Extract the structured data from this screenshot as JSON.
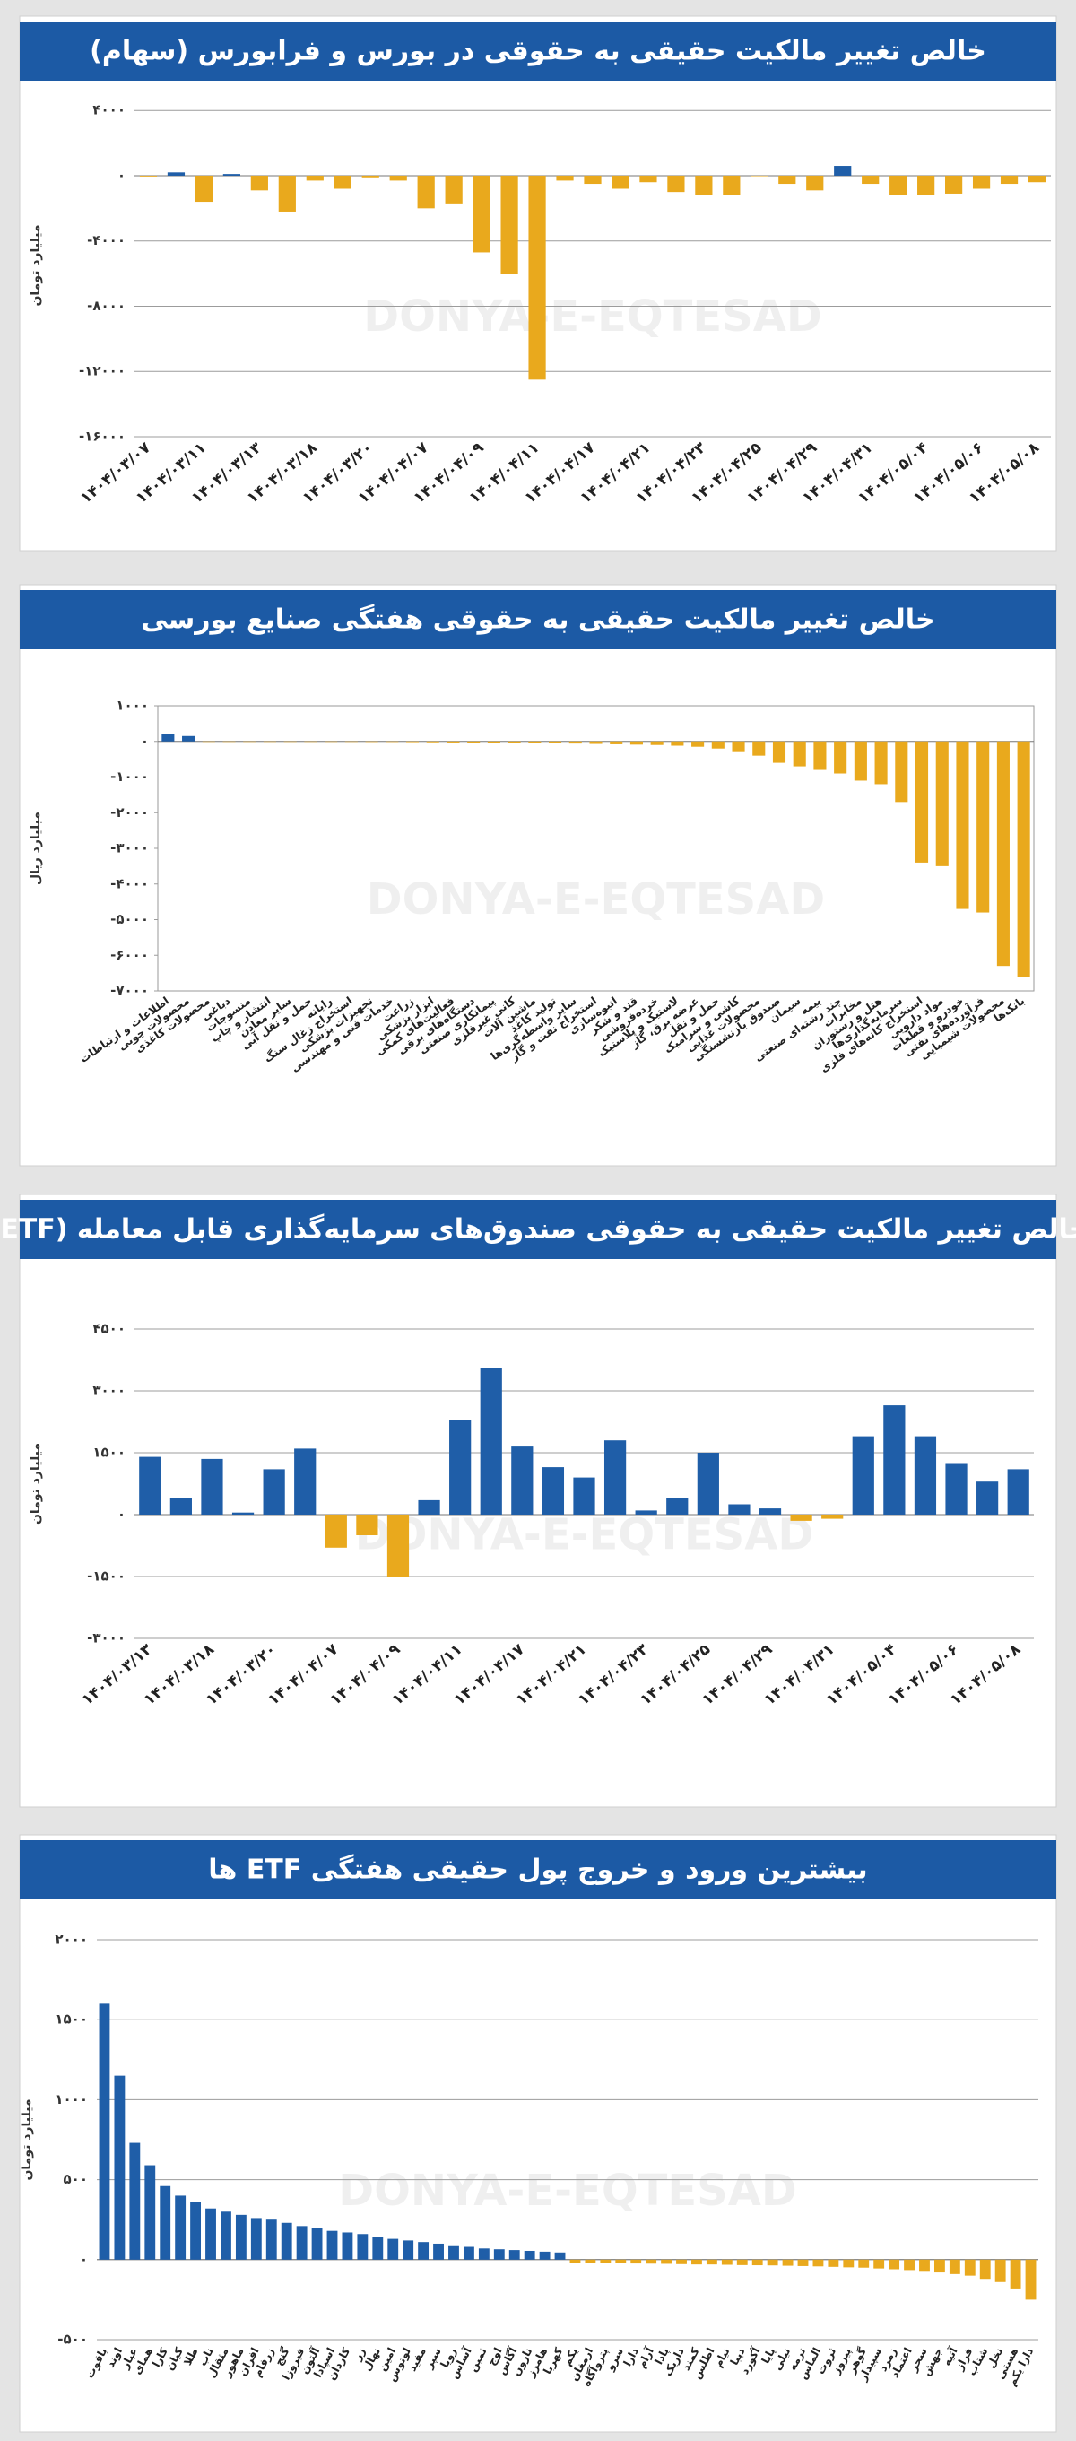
{
  "chart_data": [
    {
      "type": "bar",
      "title": "خالص تغییر مالکیت حقیقی به حقوقی در بورس و فرابورس (سهام)",
      "y_label": "میلیارد تومان",
      "watermark": "DONYA-E-EQTESAD",
      "categories": [
        "۱۴۰۴/۰۳/۰۷",
        null,
        "۱۴۰۴/۰۳/۱۱",
        null,
        "۱۴۰۴/۰۳/۱۳",
        null,
        "۱۴۰۴/۰۳/۱۸",
        null,
        "۱۴۰۴/۰۳/۲۰",
        null,
        "۱۴۰۴/۰۴/۰۷",
        null,
        "۱۴۰۴/۰۴/۰۹",
        null,
        "۱۴۰۴/۰۴/۱۱",
        null,
        "۱۴۰۴/۰۴/۱۷",
        null,
        "۱۴۰۴/۰۴/۲۱",
        null,
        "۱۴۰۴/۰۴/۲۳",
        null,
        "۱۴۰۴/۰۴/۲۵",
        null,
        "۱۴۰۴/۰۴/۲۹",
        null,
        "۱۴۰۴/۰۴/۳۱",
        null,
        "۱۴۰۴/۰۵/۰۴",
        null,
        "۱۴۰۴/۰۵/۰۶",
        null,
        "۱۴۰۴/۰۵/۰۸"
      ],
      "values": [
        -50,
        200,
        -1600,
        100,
        -900,
        -2200,
        -300,
        -800,
        -100,
        -300,
        -2000,
        -1700,
        -4700,
        -6000,
        -12500,
        -300,
        -500,
        -800,
        -400,
        -1000,
        -1200,
        -1200,
        -30,
        -500,
        -900,
        600,
        -500,
        -1200,
        -1200,
        -1100,
        -800,
        -500,
        -400
      ],
      "positive_color": "#1f5ea8",
      "negative_color": "#e9a91d",
      "ylim": [
        -16000,
        5000
      ],
      "yticks": [
        {
          "value": 4000,
          "label": "۴۰۰۰"
        },
        {
          "value": 0,
          "label": "۰"
        },
        {
          "value": -4000,
          "label": "-۴۰۰۰"
        },
        {
          "value": -8000,
          "label": "-۸۰۰۰"
        },
        {
          "value": -12000,
          "label": "-۱۲۰۰۰"
        },
        {
          "value": -16000,
          "label": "-۱۶۰۰۰"
        }
      ],
      "grid": true
    },
    {
      "type": "bar",
      "title": "خالص تغییر مالکیت حقیقی به حقوقی هفتگی صنایع بورسی",
      "y_label": "میلیارد ریال",
      "watermark": "DONYA-E-EQTESAD",
      "categories": [
        "اطلاعات و ارتباطات",
        "محصولات چوبی",
        "محصولات کاغذی",
        "دباغی",
        "منسوجات",
        "انتشار و چاپ",
        "سایر معادن",
        "حمل و نقل آبی",
        "رایانه",
        "استخراج زغال سنگ",
        "تجهیزات پزشکی",
        "خدمات فنی و مهندسی",
        "زراعت",
        "ابزار پزشکی",
        "فعالیت‌های کمکی",
        "دستگاه‌های برقی",
        "پیمانکاری صنعتی",
        "کانی غیرفلزی",
        "ماشین آلات",
        "تولید کاغذ",
        "سایر واسطه‌گری‌ها",
        "استخراج نفت و گاز",
        "انبوه‌سازی",
        "قند و شکر",
        "خرده‌فروشی",
        "لاستیک و پلاستیک",
        "عرضه برق، گاز",
        "حمل و نقل",
        "کاشی و سرامیک",
        "محصولات غذایی",
        "صندوق بازنشستگی",
        "سیمان",
        "بیمه",
        "چند رشته‌ای صنعتی",
        "مخابرات",
        "هتل و رستوران",
        "سرمایه‌گذاری‌ها",
        "استخراج کانه‌های فلزی",
        "مواد دارویی",
        "خودرو و قطعات",
        "فرآورده‌های نفتی",
        "محصولات شیمیایی",
        "بانک‌ها"
      ],
      "values": [
        200,
        150,
        -5,
        -5,
        -8,
        -8,
        -10,
        -10,
        -12,
        -12,
        -15,
        -15,
        -20,
        -25,
        -30,
        -35,
        -40,
        -45,
        -50,
        -55,
        -60,
        -70,
        -80,
        -90,
        -100,
        -120,
        -150,
        -200,
        -300,
        -400,
        -600,
        -700,
        -800,
        -900,
        -1100,
        -1200,
        -1700,
        -3400,
        -3500,
        -4700,
        -4800,
        -6300,
        -6600
      ],
      "positive_color": "#1f5ea8",
      "negative_color": "#e9a91d",
      "ylim": [
        -7000,
        1000
      ],
      "yticks": [
        {
          "value": 1000,
          "label": "۱۰۰۰"
        },
        {
          "value": 0,
          "label": "۰"
        },
        {
          "value": -1000,
          "label": "-۱۰۰۰"
        },
        {
          "value": -2000,
          "label": "-۲۰۰۰"
        },
        {
          "value": -3000,
          "label": "-۳۰۰۰"
        },
        {
          "value": -4000,
          "label": "-۴۰۰۰"
        },
        {
          "value": -5000,
          "label": "-۵۰۰۰"
        },
        {
          "value": -6000,
          "label": "-۶۰۰۰"
        },
        {
          "value": -7000,
          "label": "-۷۰۰۰"
        }
      ],
      "grid": false
    },
    {
      "type": "bar",
      "title": "خالص تغییر مالکیت حقیقی به حقوقی صندوق‌های سرمایه‌گذاری قابل معامله (ETF)",
      "y_label": "میلیارد تومان",
      "watermark": "DONYA-E-EQTESAD",
      "categories": [
        "۱۴۰۴/۰۳/۱۳",
        null,
        "۱۴۰۴/۰۳/۱۸",
        null,
        "۱۴۰۴/۰۳/۲۰",
        null,
        "۱۴۰۴/۰۴/۰۷",
        null,
        "۱۴۰۴/۰۴/۰۹",
        null,
        "۱۴۰۴/۰۴/۱۱",
        null,
        "۱۴۰۴/۰۴/۱۷",
        null,
        "۱۴۰۴/۰۴/۲۱",
        null,
        "۱۴۰۴/۰۴/۲۳",
        null,
        "۱۴۰۴/۰۴/۲۵",
        null,
        "۱۴۰۴/۰۴/۲۹",
        null,
        "۱۴۰۴/۰۴/۳۱",
        null,
        "۱۴۰۴/۰۵/۰۴",
        null,
        "۱۴۰۴/۰۵/۰۶",
        null,
        "۱۴۰۴/۰۵/۰۸"
      ],
      "values": [
        1400,
        400,
        1350,
        50,
        1100,
        1600,
        -800,
        -500,
        -1500,
        350,
        2300,
        3550,
        1650,
        1150,
        900,
        1800,
        100,
        400,
        1500,
        250,
        150,
        -150,
        -100,
        1900,
        2650,
        1900,
        1250,
        800,
        1100
      ],
      "positive_color": "#1f5ea8",
      "negative_color": "#e9a91d",
      "ylim": [
        -3000,
        4500
      ],
      "yticks": [
        {
          "value": 4500,
          "label": "۴۵۰۰"
        },
        {
          "value": 3000,
          "label": "۳۰۰۰"
        },
        {
          "value": 1500,
          "label": "۱۵۰۰"
        },
        {
          "value": 0,
          "label": "۰"
        },
        {
          "value": -1500,
          "label": "-۱۵۰۰"
        },
        {
          "value": -3000,
          "label": "-۳۰۰۰"
        }
      ],
      "grid": true
    },
    {
      "type": "bar",
      "title": "بیشترین ورود و خروج پول حقیقی هفتگی ETF ها",
      "y_label": "میلیارد تومان",
      "watermark": "DONYA-E-EQTESAD",
      "categories": [
        "یاقوت",
        "اوند",
        "عیار",
        "همای",
        "کارا",
        "کیان",
        "طلا",
        "ناب",
        "مثقال",
        "ماهور",
        "افران",
        "زرفام",
        "گنج",
        "فیروزا",
        "آلتون",
        "اسپادا",
        "کاردان",
        "زر",
        "نهال",
        "امین",
        "لوتوس",
        "مفید",
        "سپر",
        "رویا",
        "آساس",
        "ثمین",
        "اوج",
        "آگاس",
        "نارون",
        "هامرز",
        "کهربا",
        "یکم",
        "ارمغان",
        "پتروآگاه",
        "سرو",
        "دارا",
        "آرام",
        "پادا",
        "داریک",
        "کمند",
        "اطلس",
        "تیام",
        "دیبا",
        "آکورد",
        "پایا",
        "نیلی",
        "ترمه",
        "الماس",
        "ثروت",
        "پیروز",
        "گوهر",
        "سپیدار",
        "زمرد",
        "اعتماد",
        "سحر",
        "جهش",
        "آتیه",
        "فراز",
        "شتاب",
        "نخل",
        "هستی",
        "دارا یکم"
      ],
      "values": [
        1600,
        1150,
        730,
        590,
        460,
        400,
        360,
        320,
        300,
        280,
        260,
        250,
        230,
        210,
        200,
        180,
        170,
        160,
        140,
        130,
        120,
        110,
        100,
        90,
        80,
        70,
        65,
        60,
        55,
        50,
        45,
        -20,
        -20,
        -20,
        -22,
        -24,
        -25,
        -26,
        -28,
        -30,
        -30,
        -32,
        -34,
        -35,
        -36,
        -38,
        -40,
        -42,
        -45,
        -48,
        -50,
        -55,
        -60,
        -65,
        -70,
        -80,
        -90,
        -100,
        -120,
        -140,
        -180,
        -250
      ],
      "positive_color": "#1f5ea8",
      "negative_color": "#e9a91d",
      "ylim": [
        -500,
        2000
      ],
      "yticks": [
        {
          "value": 2000,
          "label": "۲۰۰۰"
        },
        {
          "value": 1500,
          "label": "۱۵۰۰"
        },
        {
          "value": 1000,
          "label": "۱۰۰۰"
        },
        {
          "value": 500,
          "label": "۵۰۰"
        },
        {
          "value": 0,
          "label": "۰"
        },
        {
          "value": -500,
          "label": "-۵۰۰"
        }
      ],
      "grid": true
    }
  ]
}
